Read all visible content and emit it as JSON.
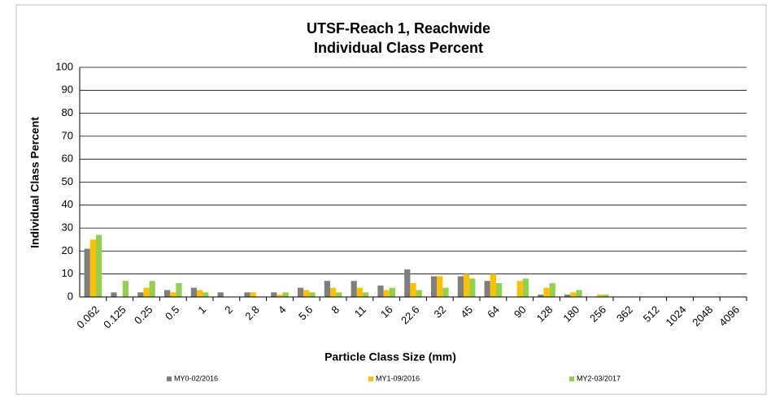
{
  "chart_data": {
    "type": "bar",
    "title": "UTSF-Reach 1, Reachwide",
    "subtitle": "Individual Class Percent",
    "x_label": "Particle Class Size (mm)",
    "y_label": "Individual Class Percent",
    "categories": [
      "0.062",
      "0.125",
      "0.25",
      "0.5",
      "1",
      "2",
      "2.8",
      "4",
      "5.6",
      "8",
      "11",
      "16",
      "22.6",
      "32",
      "45",
      "64",
      "90",
      "128",
      "180",
      "256",
      "362",
      "512",
      "1024",
      "2048",
      "4096"
    ],
    "series": [
      {
        "name": "MY0-02/2016",
        "color": "#7f7f7f",
        "values": [
          21,
          2,
          2,
          3,
          4,
          2,
          2,
          2,
          4,
          7,
          7,
          5,
          12,
          9,
          9,
          7,
          0,
          1,
          1,
          0,
          0,
          0,
          0,
          0,
          0
        ]
      },
      {
        "name": "MY1-09/2016",
        "color": "#ffc000",
        "values": [
          25,
          0,
          4,
          2,
          3,
          0,
          2,
          1,
          3,
          4,
          4,
          3,
          6,
          9,
          10,
          10,
          7,
          4,
          2,
          1,
          0,
          0,
          0,
          0,
          0
        ]
      },
      {
        "name": "MY2-03/2017",
        "color": "#92d050",
        "values": [
          27,
          7,
          7,
          6,
          2,
          0,
          0,
          2,
          2,
          2,
          2,
          4,
          3,
          4,
          8,
          6,
          8,
          6,
          3,
          1,
          0,
          0,
          0,
          0,
          0
        ]
      }
    ],
    "ylim": [
      0,
      100
    ],
    "yticks": [
      0,
      10,
      20,
      30,
      40,
      50,
      60,
      70,
      80,
      90,
      100
    ],
    "grid": true,
    "legend": "bottom"
  }
}
